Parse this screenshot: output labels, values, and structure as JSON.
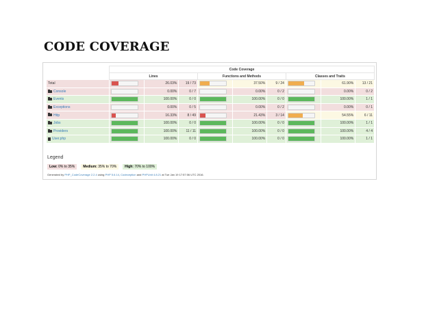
{
  "page": {
    "title": "CODE COVERAGE"
  },
  "table": {
    "group_header": "Code Coverage",
    "columns": {
      "lines": "Lines",
      "functions": "Functions and Methods",
      "classes": "Classes and Traits"
    },
    "rows": [
      {
        "name": "Total",
        "icon": "none",
        "kind": "total",
        "lines": {
          "pct": "26.03%",
          "cnt": "19 / 73",
          "fill": 0.26,
          "level": "low"
        },
        "functions": {
          "pct": "37.50%",
          "cnt": "9 / 24",
          "fill": 0.375,
          "level": "medium"
        },
        "classes": {
          "pct": "61.90%",
          "cnt": "13 / 21",
          "fill": 0.619,
          "level": "medium"
        }
      },
      {
        "name": "Console",
        "icon": "folder-icon",
        "kind": "dir",
        "lines": {
          "pct": "0.00%",
          "cnt": "0 / 7",
          "fill": 0,
          "level": "low"
        },
        "functions": {
          "pct": "0.00%",
          "cnt": "0 / 2",
          "fill": 0,
          "level": "low"
        },
        "classes": {
          "pct": "0.00%",
          "cnt": "0 / 2",
          "fill": 0,
          "level": "low"
        }
      },
      {
        "name": "Events",
        "icon": "folder-icon",
        "kind": "dir",
        "lines": {
          "pct": "100.00%",
          "cnt": "0 / 0",
          "fill": 1,
          "level": "high"
        },
        "functions": {
          "pct": "100.00%",
          "cnt": "0 / 0",
          "fill": 1,
          "level": "high"
        },
        "classes": {
          "pct": "100.00%",
          "cnt": "1 / 1",
          "fill": 1,
          "level": "high"
        }
      },
      {
        "name": "Exceptions",
        "icon": "folder-icon",
        "kind": "dir",
        "lines": {
          "pct": "0.00%",
          "cnt": "0 / 5",
          "fill": 0,
          "level": "low"
        },
        "functions": {
          "pct": "0.00%",
          "cnt": "0 / 2",
          "fill": 0,
          "level": "low"
        },
        "classes": {
          "pct": "0.00%",
          "cnt": "0 / 1",
          "fill": 0,
          "level": "low"
        }
      },
      {
        "name": "Http",
        "icon": "folder-icon",
        "kind": "dir",
        "lines": {
          "pct": "16.33%",
          "cnt": "8 / 49",
          "fill": 0.1633,
          "level": "low"
        },
        "functions": {
          "pct": "21.43%",
          "cnt": "3 / 14",
          "fill": 0.2143,
          "level": "low"
        },
        "classes": {
          "pct": "54.55%",
          "cnt": "6 / 11",
          "fill": 0.5455,
          "level": "medium"
        }
      },
      {
        "name": "Jobs",
        "icon": "folder-icon",
        "kind": "dir",
        "lines": {
          "pct": "100.00%",
          "cnt": "0 / 0",
          "fill": 1,
          "level": "high"
        },
        "functions": {
          "pct": "100.00%",
          "cnt": "0 / 0",
          "fill": 1,
          "level": "high"
        },
        "classes": {
          "pct": "100.00%",
          "cnt": "1 / 1",
          "fill": 1,
          "level": "high"
        }
      },
      {
        "name": "Providers",
        "icon": "folder-icon",
        "kind": "dir",
        "lines": {
          "pct": "100.00%",
          "cnt": "11 / 11",
          "fill": 1,
          "level": "high"
        },
        "functions": {
          "pct": "100.00%",
          "cnt": "0 / 0",
          "fill": 1,
          "level": "high"
        },
        "classes": {
          "pct": "100.00%",
          "cnt": "4 / 4",
          "fill": 1,
          "level": "high"
        }
      },
      {
        "name": "User.php",
        "icon": "file-icon",
        "kind": "file",
        "lines": {
          "pct": "100.00%",
          "cnt": "0 / 0",
          "fill": 1,
          "level": "high"
        },
        "functions": {
          "pct": "100.00%",
          "cnt": "0 / 0",
          "fill": 1,
          "level": "high"
        },
        "classes": {
          "pct": "100.00%",
          "cnt": "1 / 1",
          "fill": 1,
          "level": "high"
        }
      }
    ]
  },
  "legend": {
    "title": "Legend",
    "low_tag": "Low:",
    "low_range": "0% to 35%",
    "medium_tag": "Medium:",
    "medium_range": "35% to 70%",
    "high_tag": "High:",
    "high_range": "70% to 100%"
  },
  "footer": {
    "t1": "Generated by ",
    "php_cc": "PHP_CodeCoverage 2.2.4",
    "t2": " using ",
    "php": "PHP 5.6.14",
    "t3": ", ",
    "codeception": "Codeception",
    "t4": " and ",
    "phpunit": "PHPUnit 4.8.21",
    "t5": " at Tue Jan 19 17:57:06 UTC 2016."
  },
  "colors": {
    "low_bg": "#f2dede",
    "medium_bg": "#fcf8e3",
    "high_bg": "#dff0d8",
    "low_bar": "#d9534f",
    "medium_bar": "#f0ad4e",
    "high_bar": "#5cb85c",
    "link": "#337ab7"
  }
}
